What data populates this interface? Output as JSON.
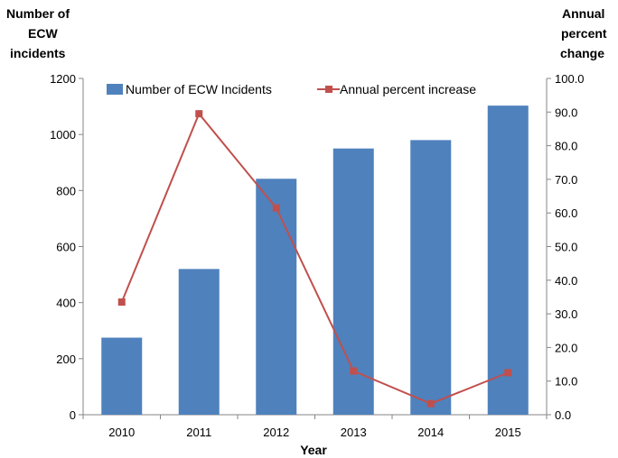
{
  "chart_data": {
    "type": "bar",
    "categories": [
      "2010",
      "2011",
      "2012",
      "2013",
      "2014",
      "2015"
    ],
    "xlabel": "Year",
    "ylabel_left": [
      "Number of",
      "ECW",
      "incidents"
    ],
    "ylabel_right": [
      "Annual",
      "percent",
      "change"
    ],
    "ylim_left": [
      0,
      1200
    ],
    "ylim_right": [
      0,
      100
    ],
    "yticks_left": [
      "0",
      "200",
      "400",
      "600",
      "800",
      "1000",
      "1200"
    ],
    "yticks_right": [
      "0.0",
      "10.0",
      "20.0",
      "30.0",
      "40.0",
      "50.0",
      "60.0",
      "70.0",
      "80.0",
      "90.0",
      "100.0"
    ],
    "series": [
      {
        "name": "Number of ECW Incidents",
        "type": "bar",
        "axis": "left",
        "color": "#4f81bd",
        "values": [
          275,
          520,
          842,
          950,
          980,
          1103
        ]
      },
      {
        "name": "Annual percent increase",
        "type": "line",
        "axis": "right",
        "color": "#c0504d",
        "values": [
          33.5,
          89.5,
          61.5,
          13.0,
          3.3,
          12.5
        ]
      }
    ],
    "grid": false,
    "legend": "top-center"
  }
}
